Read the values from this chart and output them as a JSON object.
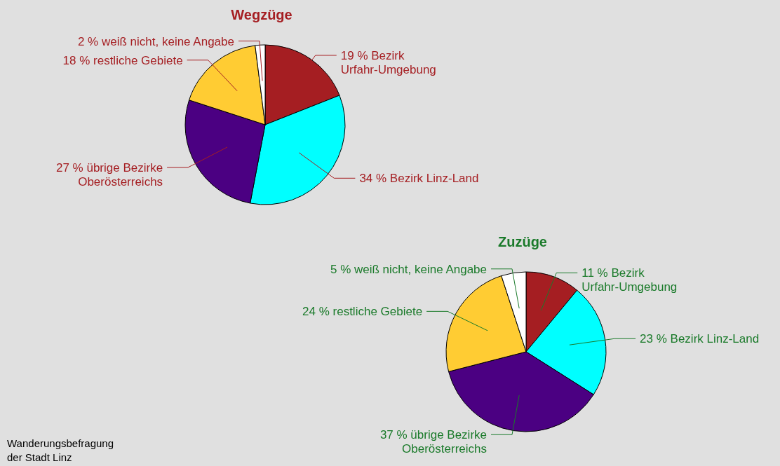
{
  "chart_data": [
    {
      "type": "pie",
      "title": "Wegzüge",
      "categories": [
        "Bezirk\nUrfahr-Umgebung",
        "Bezirk Linz-Land",
        "übrige Bezirke\nOberösterreichs",
        "restliche Gebiete",
        "weiß nicht, keine Angabe"
      ],
      "values": [
        19,
        34,
        27,
        18,
        2
      ],
      "value_labels": [
        "19 %",
        "34 %",
        "27 %",
        "18 %",
        "2 %"
      ],
      "colors": [
        "#a51e22",
        "#00ffff",
        "#4b0082",
        "#ffcc33",
        "#ffffff"
      ]
    },
    {
      "type": "pie",
      "title": "Zuzüge",
      "categories": [
        "Bezirk\nUrfahr-Umgebung",
        "Bezirk Linz-Land",
        "übrige Bezirke\nOberösterreichs",
        "restliche Gebiete",
        "weiß nicht, keine Angabe"
      ],
      "values": [
        11,
        23,
        37,
        24,
        5
      ],
      "value_labels": [
        "11 %",
        "23 %",
        "37 %",
        "24 %",
        "5 %"
      ],
      "colors": [
        "#a51e22",
        "#00ffff",
        "#4b0082",
        "#ffcc33",
        "#ffffff"
      ],
      "annotations": [
        "Wanderungsbefragung\nder Stadt Linz"
      ]
    }
  ]
}
